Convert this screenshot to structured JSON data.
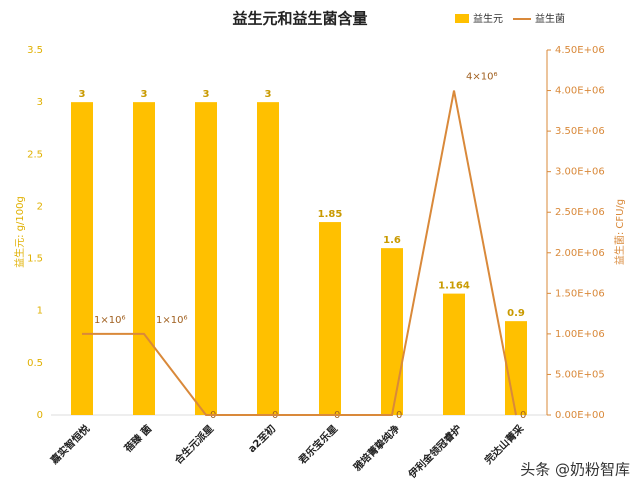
{
  "chart_data": {
    "type": "bar_line",
    "title": "益生元和益生菌含量",
    "categories": [
      "嘉实智恒悦",
      "蓓臻 菌",
      "合生元派星",
      "a2至初",
      "君乐宝乐星",
      "雅培菁挚纯净",
      "伊利金领冠睿护",
      "完达山菁采"
    ],
    "series": [
      {
        "name": "益生元",
        "type": "bar",
        "color": "#ffc000",
        "values": [
          3,
          3,
          3,
          3,
          1.85,
          1.6,
          1.164,
          0.9
        ]
      },
      {
        "name": "益生菌",
        "type": "line",
        "axis": "y2",
        "color": "#d9893a",
        "values": [
          1000000,
          1000000,
          0,
          0,
          0,
          0,
          4000000,
          0
        ],
        "value_labels": [
          "1×10⁶",
          "1×10⁶",
          "0",
          "0",
          "0",
          "0",
          "4×10⁶",
          "0"
        ]
      }
    ],
    "ylabel": "益生元: g/100g",
    "y2label": "益生菌: CFU/g",
    "ylim": [
      0,
      3.5
    ],
    "yticks": [
      0,
      0.5,
      1,
      1.5,
      2,
      2.5,
      3,
      3.5
    ],
    "y2lim": [
      0,
      4500000
    ],
    "y2ticks": [
      {
        "value": 0,
        "label": "0.00E+00"
      },
      {
        "value": 500000,
        "label": "5.00E+05"
      },
      {
        "value": 1000000,
        "label": "1.00E+06"
      },
      {
        "value": 1500000,
        "label": "1.50E+06"
      },
      {
        "value": 2000000,
        "label": "2.00E+06"
      },
      {
        "value": 2500000,
        "label": "2.50E+06"
      },
      {
        "value": 3000000,
        "label": "3.00E+06"
      },
      {
        "value": 3500000,
        "label": "3.50E+06"
      },
      {
        "value": 4000000,
        "label": "4.00E+06"
      },
      {
        "value": 4500000,
        "label": "4.50E+06"
      }
    ],
    "watermark": "头条 @奶粉智库"
  }
}
